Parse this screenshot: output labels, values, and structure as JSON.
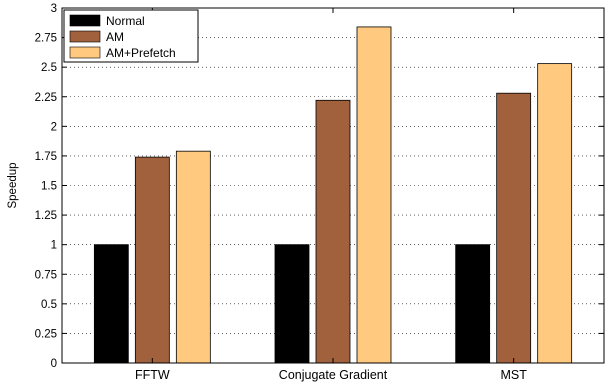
{
  "chart_data": {
    "type": "bar",
    "title": "",
    "xlabel": "",
    "ylabel": "Speedup",
    "ylim": [
      0,
      3
    ],
    "yticks": [
      "0",
      "0.25",
      "0.5",
      "0.75",
      "1",
      "1.25",
      "1.5",
      "1.75",
      "2",
      "2.25",
      "2.5",
      "2.75",
      "3"
    ],
    "categories": [
      "FFTW",
      "Conjugate Gradient",
      "MST"
    ],
    "series": [
      {
        "name": "Normal",
        "color": "#000000",
        "values": [
          1.0,
          1.0,
          1.0
        ]
      },
      {
        "name": "AM",
        "color": "#a0613c",
        "values": [
          1.74,
          2.22,
          2.28
        ]
      },
      {
        "name": "AM+Prefetch",
        "color": "#ffc97f",
        "values": [
          1.79,
          2.84,
          2.53
        ]
      }
    ],
    "grid": true,
    "legend_position": "top-left"
  }
}
